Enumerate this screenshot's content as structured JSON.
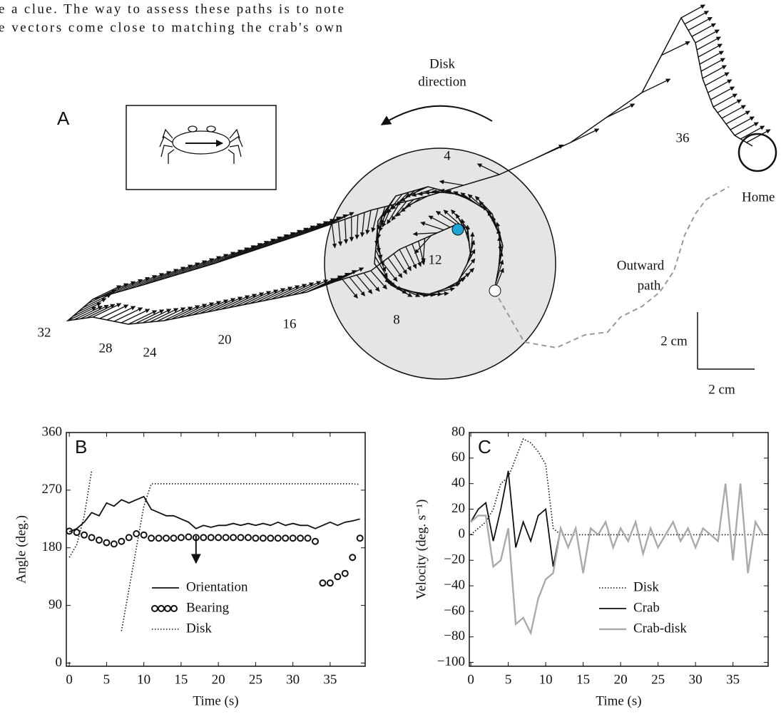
{
  "text": {
    "lines": [
      "e a clue. The way to assess these paths is to note",
      "e vectors come close to matching the crab's own"
    ]
  },
  "panel_a": {
    "label": "A",
    "disk_direction": [
      "Disk",
      "direction"
    ],
    "track_numbers": [
      "4",
      "12",
      "8",
      "16",
      "20",
      "24",
      "28",
      "32",
      "36"
    ],
    "home": "Home",
    "outward_path": [
      "Outward",
      "path"
    ],
    "scale_vertical": "2 cm",
    "scale_horizontal": "2 cm"
  },
  "chart_data": [
    {
      "type": "line",
      "panel": "B",
      "xlabel": "Time (s)",
      "ylabel": "Angle (deg.)",
      "xlim": [
        -0.4,
        39.7
      ],
      "xticks": [
        0,
        5,
        10,
        15,
        20,
        25,
        30,
        35
      ],
      "ylim": [
        -5,
        360
      ],
      "yticks": [
        0,
        90,
        180,
        270,
        360
      ],
      "legend": "lower center",
      "x": [
        0,
        1,
        2,
        3,
        4,
        5,
        6,
        7,
        8,
        9,
        10,
        11,
        12,
        13,
        14,
        15,
        16,
        17,
        18,
        19,
        20,
        21,
        22,
        23,
        24,
        25,
        26,
        27,
        28,
        29,
        30,
        31,
        32,
        33,
        34,
        35,
        36,
        37,
        38,
        39
      ],
      "series": [
        {
          "name": "Orientation",
          "color": "#111111",
          "style": "solid",
          "values": [
            205,
            210,
            220,
            235,
            230,
            250,
            245,
            255,
            250,
            255,
            260,
            240,
            235,
            230,
            230,
            225,
            220,
            210,
            215,
            212,
            215,
            215,
            218,
            215,
            218,
            215,
            218,
            215,
            220,
            215,
            218,
            215,
            215,
            210,
            215,
            220,
            215,
            220,
            222,
            225
          ]
        },
        {
          "name": "Bearing",
          "color": "#111111",
          "style": "circles",
          "values": [
            206,
            204,
            200,
            196,
            192,
            188,
            186,
            190,
            196,
            202,
            200,
            195,
            195,
            195,
            195,
            196,
            197,
            196,
            196,
            196,
            196,
            196,
            196,
            196,
            196,
            195,
            195,
            195,
            195,
            195,
            195,
            195,
            195,
            190,
            125,
            125,
            135,
            140,
            165,
            195
          ]
        },
        {
          "name": "Disk",
          "color": "#111111",
          "style": "dotted",
          "values": [
            165,
            185,
            230,
            300,
            null,
            null,
            null,
            50,
            115,
            180,
            245,
            280,
            280,
            280,
            280,
            280,
            280,
            280,
            280,
            280,
            280,
            280,
            280,
            280,
            280,
            280,
            280,
            280,
            280,
            280,
            280,
            280,
            280,
            280,
            280,
            280,
            280,
            280,
            280,
            279
          ]
        }
      ]
    },
    {
      "type": "line",
      "panel": "C",
      "xlabel": "Time (s)",
      "ylabel": "Velocity (deg. s⁻¹)",
      "xlim": [
        -0.2,
        39.7
      ],
      "xticks": [
        0,
        5,
        10,
        15,
        20,
        25,
        30,
        35
      ],
      "ylim": [
        -103,
        80
      ],
      "yticks": [
        {
          "value": -100,
          "label": "−100"
        },
        {
          "value": -80,
          "label": "−80"
        },
        {
          "value": -60,
          "label": "−60"
        },
        {
          "value": -40,
          "label": "−40"
        },
        {
          "value": -20,
          "label": "−20"
        },
        0,
        20,
        40,
        60,
        80
      ],
      "legend": "lower right",
      "x": [
        0,
        1,
        2,
        3,
        4,
        5,
        6,
        7,
        8,
        9,
        10,
        11,
        12,
        13,
        14,
        15,
        16,
        17,
        18,
        19,
        20,
        21,
        22,
        23,
        24,
        25,
        26,
        27,
        28,
        29,
        30,
        31,
        32,
        33,
        34,
        35,
        36,
        37,
        38,
        39
      ],
      "series": [
        {
          "name": "Disk",
          "color": "#111111",
          "style": "dotted",
          "values": [
            0,
            5,
            10,
            20,
            40,
            45,
            60,
            75,
            72,
            65,
            55,
            5,
            0,
            0,
            0,
            0,
            0,
            0,
            0,
            0,
            0,
            0,
            0,
            0,
            0,
            0,
            0,
            0,
            0,
            0,
            0,
            0,
            0,
            0,
            0,
            0,
            0,
            0,
            0,
            0
          ]
        },
        {
          "name": "Crab",
          "color": "#111111",
          "style": "solid",
          "values": [
            10,
            20,
            25,
            -5,
            20,
            50,
            -10,
            10,
            -5,
            15,
            20,
            -25,
            5,
            -10,
            5,
            -30,
            5,
            0,
            10,
            -10,
            5,
            -5,
            10,
            -15,
            5,
            -10,
            0,
            10,
            -5,
            5,
            -10,
            5,
            0,
            -5,
            40,
            -20,
            40,
            -30,
            10,
            0
          ]
        },
        {
          "name": "Crab-disk",
          "color": "#aaaaaa",
          "style": "solid",
          "values": [
            10,
            15,
            15,
            -25,
            -20,
            5,
            -70,
            -65,
            -77,
            -50,
            -35,
            -30,
            5,
            -10,
            5,
            -30,
            5,
            0,
            10,
            -10,
            5,
            -5,
            10,
            -15,
            5,
            -10,
            0,
            10,
            -5,
            5,
            -10,
            5,
            0,
            -5,
            40,
            -20,
            40,
            -30,
            10,
            0
          ]
        }
      ]
    }
  ]
}
